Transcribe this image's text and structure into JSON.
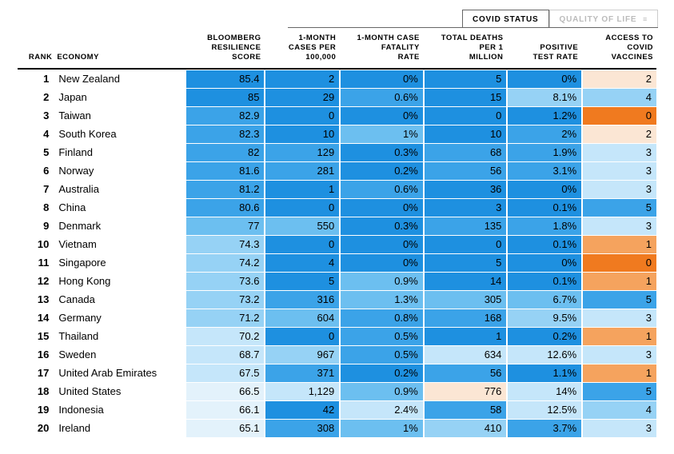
{
  "tabs": {
    "active": "COVID STATUS",
    "inactive": "QUALITY OF LIFE"
  },
  "columns": {
    "rank": "RANK",
    "economy": "ECONOMY",
    "score": "BLOOMBERG\nRESILIENCE\nSCORE",
    "cases": "1-MONTH\nCASES PER\n100,000",
    "cfr": "1-MONTH CASE\nFATALITY\nRATE",
    "deaths": "TOTAL DEATHS\nPER 1\nMILLION",
    "postest": "POSITIVE\nTEST RATE",
    "vax": "ACCESS TO\nCOVID\nVACCINES"
  },
  "palette": {
    "blue5": "#1e90e0",
    "blue4": "#3ba3e8",
    "blue3": "#6cbff0",
    "blue2": "#96d2f5",
    "blue1": "#c5e6fa",
    "blue0": "#e3f2fb",
    "orange3": "#f07a1f",
    "orange2": "#f5a35e",
    "orange1": "#f8cbaa",
    "orange0": "#fbe6d4"
  },
  "rows": [
    {
      "rank": 1,
      "economy": "New Zealand",
      "score": "85.4",
      "score_c": "blue5",
      "cases": "2",
      "cases_c": "blue5",
      "cfr": "0%",
      "cfr_c": "blue5",
      "deaths": "5",
      "deaths_c": "blue5",
      "pos": "0%",
      "pos_c": "blue5",
      "vax": "2",
      "vax_c": "orange0"
    },
    {
      "rank": 2,
      "economy": "Japan",
      "score": "85",
      "score_c": "blue5",
      "cases": "29",
      "cases_c": "blue5",
      "cfr": "0.6%",
      "cfr_c": "blue4",
      "deaths": "15",
      "deaths_c": "blue5",
      "pos": "8.1%",
      "pos_c": "blue2",
      "vax": "4",
      "vax_c": "blue2"
    },
    {
      "rank": 3,
      "economy": "Taiwan",
      "score": "82.9",
      "score_c": "blue4",
      "cases": "0",
      "cases_c": "blue5",
      "cfr": "0%",
      "cfr_c": "blue5",
      "deaths": "0",
      "deaths_c": "blue5",
      "pos": "1.2%",
      "pos_c": "blue5",
      "vax": "0",
      "vax_c": "orange3"
    },
    {
      "rank": 4,
      "economy": "South Korea",
      "score": "82.3",
      "score_c": "blue4",
      "cases": "10",
      "cases_c": "blue5",
      "cfr": "1%",
      "cfr_c": "blue3",
      "deaths": "10",
      "deaths_c": "blue5",
      "pos": "2%",
      "pos_c": "blue4",
      "vax": "2",
      "vax_c": "orange0"
    },
    {
      "rank": 5,
      "economy": "Finland",
      "score": "82",
      "score_c": "blue4",
      "cases": "129",
      "cases_c": "blue4",
      "cfr": "0.3%",
      "cfr_c": "blue5",
      "deaths": "68",
      "deaths_c": "blue4",
      "pos": "1.9%",
      "pos_c": "blue4",
      "vax": "3",
      "vax_c": "blue1"
    },
    {
      "rank": 6,
      "economy": "Norway",
      "score": "81.6",
      "score_c": "blue4",
      "cases": "281",
      "cases_c": "blue4",
      "cfr": "0.2%",
      "cfr_c": "blue5",
      "deaths": "56",
      "deaths_c": "blue4",
      "pos": "3.1%",
      "pos_c": "blue4",
      "vax": "3",
      "vax_c": "blue1"
    },
    {
      "rank": 7,
      "economy": "Australia",
      "score": "81.2",
      "score_c": "blue4",
      "cases": "1",
      "cases_c": "blue5",
      "cfr": "0.6%",
      "cfr_c": "blue4",
      "deaths": "36",
      "deaths_c": "blue5",
      "pos": "0%",
      "pos_c": "blue5",
      "vax": "3",
      "vax_c": "blue1"
    },
    {
      "rank": 8,
      "economy": "China",
      "score": "80.6",
      "score_c": "blue4",
      "cases": "0",
      "cases_c": "blue5",
      "cfr": "0%",
      "cfr_c": "blue5",
      "deaths": "3",
      "deaths_c": "blue5",
      "pos": "0.1%",
      "pos_c": "blue5",
      "vax": "5",
      "vax_c": "blue4"
    },
    {
      "rank": 9,
      "economy": "Denmark",
      "score": "77",
      "score_c": "blue3",
      "cases": "550",
      "cases_c": "blue3",
      "cfr": "0.3%",
      "cfr_c": "blue5",
      "deaths": "135",
      "deaths_c": "blue4",
      "pos": "1.8%",
      "pos_c": "blue4",
      "vax": "3",
      "vax_c": "blue1"
    },
    {
      "rank": 10,
      "economy": "Vietnam",
      "score": "74.3",
      "score_c": "blue2",
      "cases": "0",
      "cases_c": "blue5",
      "cfr": "0%",
      "cfr_c": "blue5",
      "deaths": "0",
      "deaths_c": "blue5",
      "pos": "0.1%",
      "pos_c": "blue5",
      "vax": "1",
      "vax_c": "orange2"
    },
    {
      "rank": 11,
      "economy": "Singapore",
      "score": "74.2",
      "score_c": "blue2",
      "cases": "4",
      "cases_c": "blue5",
      "cfr": "0%",
      "cfr_c": "blue5",
      "deaths": "5",
      "deaths_c": "blue5",
      "pos": "0%",
      "pos_c": "blue5",
      "vax": "0",
      "vax_c": "orange3"
    },
    {
      "rank": 12,
      "economy": "Hong Kong",
      "score": "73.6",
      "score_c": "blue2",
      "cases": "5",
      "cases_c": "blue5",
      "cfr": "0.9%",
      "cfr_c": "blue3",
      "deaths": "14",
      "deaths_c": "blue5",
      "pos": "0.1%",
      "pos_c": "blue5",
      "vax": "1",
      "vax_c": "orange2"
    },
    {
      "rank": 13,
      "economy": "Canada",
      "score": "73.2",
      "score_c": "blue2",
      "cases": "316",
      "cases_c": "blue4",
      "cfr": "1.3%",
      "cfr_c": "blue3",
      "deaths": "305",
      "deaths_c": "blue3",
      "pos": "6.7%",
      "pos_c": "blue3",
      "vax": "5",
      "vax_c": "blue4"
    },
    {
      "rank": 14,
      "economy": "Germany",
      "score": "71.2",
      "score_c": "blue2",
      "cases": "604",
      "cases_c": "blue3",
      "cfr": "0.8%",
      "cfr_c": "blue4",
      "deaths": "168",
      "deaths_c": "blue4",
      "pos": "9.5%",
      "pos_c": "blue2",
      "vax": "3",
      "vax_c": "blue1"
    },
    {
      "rank": 15,
      "economy": "Thailand",
      "score": "70.2",
      "score_c": "blue1",
      "cases": "0",
      "cases_c": "blue5",
      "cfr": "0.5%",
      "cfr_c": "blue4",
      "deaths": "1",
      "deaths_c": "blue5",
      "pos": "0.2%",
      "pos_c": "blue5",
      "vax": "1",
      "vax_c": "orange2"
    },
    {
      "rank": 16,
      "economy": "Sweden",
      "score": "68.7",
      "score_c": "blue1",
      "cases": "967",
      "cases_c": "blue2",
      "cfr": "0.5%",
      "cfr_c": "blue4",
      "deaths": "634",
      "deaths_c": "blue1",
      "pos": "12.6%",
      "pos_c": "blue1",
      "vax": "3",
      "vax_c": "blue1"
    },
    {
      "rank": 17,
      "economy": "United Arab Emirates",
      "score": "67.5",
      "score_c": "blue1",
      "cases": "371",
      "cases_c": "blue4",
      "cfr": "0.2%",
      "cfr_c": "blue5",
      "deaths": "56",
      "deaths_c": "blue4",
      "pos": "1.1%",
      "pos_c": "blue5",
      "vax": "1",
      "vax_c": "orange2"
    },
    {
      "rank": 18,
      "economy": "United States",
      "score": "66.5",
      "score_c": "blue0",
      "cases": "1,129",
      "cases_c": "blue1",
      "cfr": "0.9%",
      "cfr_c": "blue3",
      "deaths": "776",
      "deaths_c": "orange0",
      "pos": "14%",
      "pos_c": "blue1",
      "vax": "5",
      "vax_c": "blue4"
    },
    {
      "rank": 19,
      "economy": "Indonesia",
      "score": "66.1",
      "score_c": "blue0",
      "cases": "42",
      "cases_c": "blue5",
      "cfr": "2.4%",
      "cfr_c": "blue1",
      "deaths": "58",
      "deaths_c": "blue4",
      "pos": "12.5%",
      "pos_c": "blue1",
      "vax": "4",
      "vax_c": "blue2"
    },
    {
      "rank": 20,
      "economy": "Ireland",
      "score": "65.1",
      "score_c": "blue0",
      "cases": "308",
      "cases_c": "blue4",
      "cfr": "1%",
      "cfr_c": "blue3",
      "deaths": "410",
      "deaths_c": "blue2",
      "pos": "3.7%",
      "pos_c": "blue4",
      "vax": "3",
      "vax_c": "blue1"
    }
  ]
}
